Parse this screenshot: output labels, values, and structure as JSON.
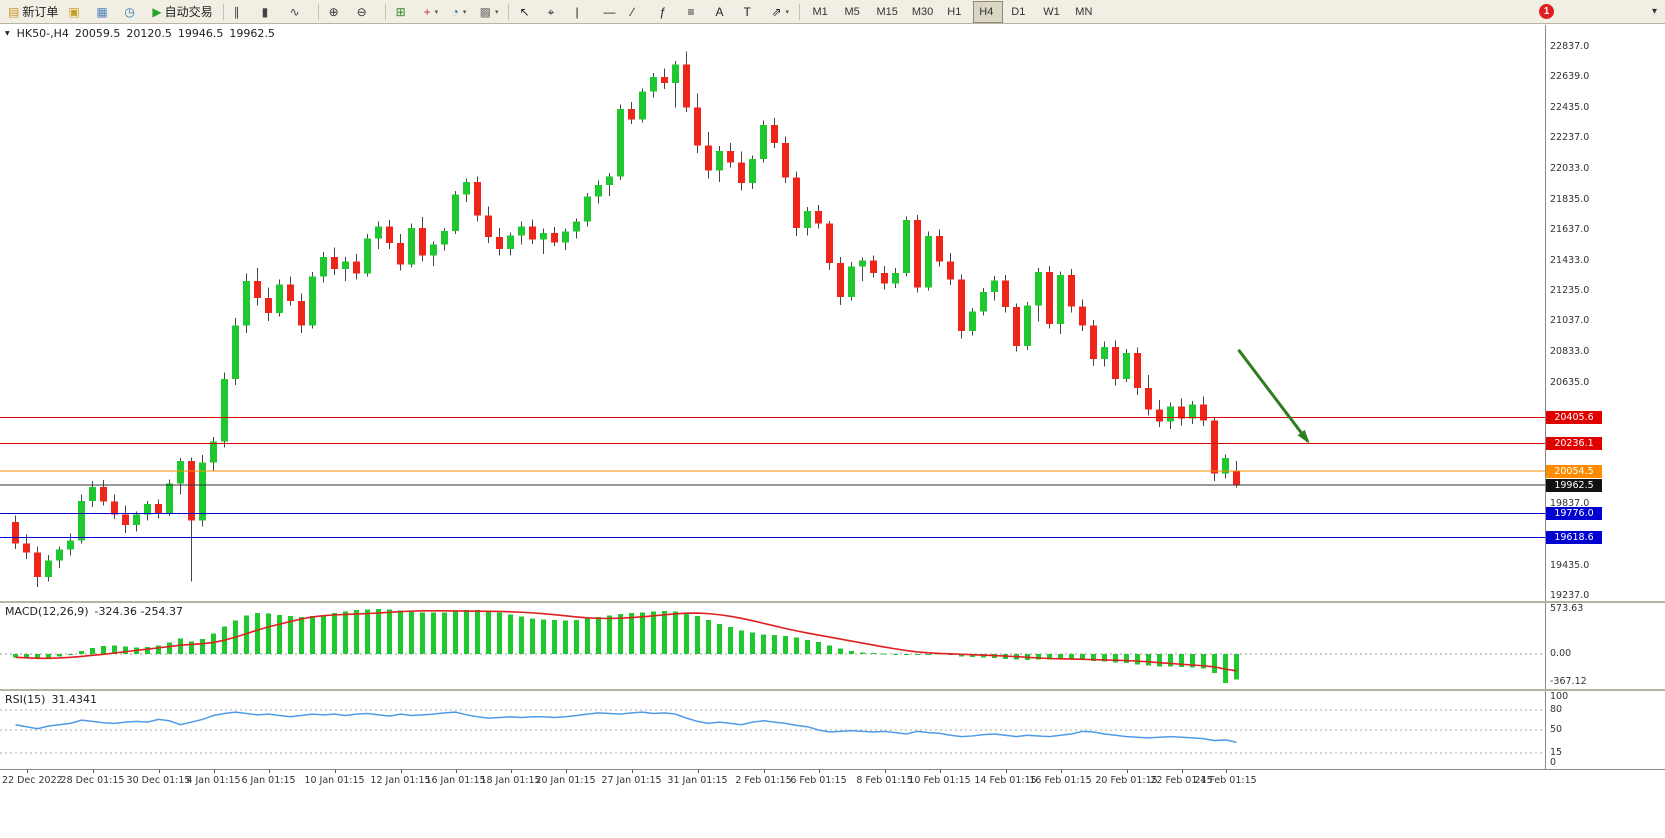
{
  "toolbar": {
    "groups": [
      [
        {
          "name": "new-order",
          "glyph": "▤",
          "label": "新订单",
          "color": "#c89628"
        },
        {
          "name": "charts",
          "glyph": "▣",
          "color": "#c8a028"
        },
        {
          "name": "profiles",
          "glyph": "▦",
          "color": "#4f81bd"
        },
        {
          "name": "market-watch",
          "glyph": "◷",
          "color": "#2e75b6"
        },
        {
          "name": "autotrading",
          "glyph": "▶",
          "label": "自动交易",
          "color": "#28a428"
        }
      ],
      [
        {
          "name": "bar-chart",
          "glyph": "∥",
          "color": "#444444"
        },
        {
          "name": "candlestick-chart",
          "glyph": "▮",
          "color": "#444444"
        },
        {
          "name": "line-chart",
          "glyph": "∿",
          "color": "#444444"
        }
      ],
      [
        {
          "name": "zoom-in",
          "glyph": "⊕",
          "color": "#333333"
        },
        {
          "name": "zoom-out",
          "glyph": "⊖",
          "color": "#333333"
        }
      ],
      [
        {
          "name": "tile-windows",
          "glyph": "⊞",
          "color": "#2e8b2e"
        },
        {
          "name": "indicators",
          "glyph": "+",
          "color": "#cc3333",
          "dropdown": true
        },
        {
          "name": "periods",
          "glyph": "◔",
          "color": "#2e75b6",
          "dropdown": true
        },
        {
          "name": "templates",
          "glyph": "▩",
          "color": "#777777",
          "dropdown": true
        }
      ],
      [
        {
          "name": "cursor",
          "glyph": "↖",
          "color": "#222222"
        },
        {
          "name": "crosshair",
          "glyph": "⌖",
          "color": "#222222"
        },
        {
          "name": "vertical-line",
          "glyph": "|",
          "color": "#222222"
        },
        {
          "name": "horizontal-line",
          "glyph": "—",
          "color": "#222222"
        },
        {
          "name": "trendline",
          "glyph": "∕",
          "color": "#222222"
        },
        {
          "name": "fibonacci",
          "glyph": "ƒ",
          "color": "#222222"
        },
        {
          "name": "channel",
          "glyph": "≡",
          "color": "#222222"
        },
        {
          "name": "text",
          "glyph": "A",
          "color": "#222222"
        },
        {
          "name": "text-label",
          "glyph": "T",
          "color": "#222222"
        },
        {
          "name": "arrows",
          "glyph": "⇗",
          "color": "#222222",
          "dropdown": true
        }
      ]
    ],
    "timeframes": [
      "M1",
      "M5",
      "M15",
      "M30",
      "H1",
      "H4",
      "D1",
      "W1",
      "MN"
    ],
    "active_timeframe": "H4",
    "badge_count": "1",
    "overflow_glyph": "▾"
  },
  "chart": {
    "collapse_glyph": "▼",
    "symbol_period": "HK50-,H4",
    "open": "20059.5",
    "high": "20120.5",
    "low": "19946.5",
    "close": "19962.5"
  },
  "chart_data": [
    {
      "type": "candlestick",
      "symbol": "HK50-",
      "timeframe": "H4",
      "ylim": [
        19203,
        22980
      ],
      "grid": false,
      "colors": {
        "up": "#1ec82e",
        "down": "#f0251a",
        "wick": "#444444"
      },
      "price_axis_labels": [
        22837,
        22639,
        22435,
        22237,
        22033,
        21835,
        21637,
        21433,
        21235,
        21037,
        20833,
        20635,
        19837,
        19435,
        19237
      ],
      "hlines": [
        {
          "label": "20405.6",
          "price": 20405.6,
          "line_color": "#e00000",
          "tag_color": "#e00000"
        },
        {
          "label": "20236.1",
          "price": 20236.1,
          "line_color": "#e00000",
          "tag_color": "#e00000"
        },
        {
          "label": "20054.5",
          "price": 20054.5,
          "line_color": "#ff8c00",
          "tag_color": "#ff8c00"
        },
        {
          "label": "19962.5",
          "price": 19962.5,
          "line_color": "#333333",
          "tag_color": "#111111"
        },
        {
          "label": "19776.0",
          "price": 19776.0,
          "line_color": "#0000d0",
          "tag_color": "#0000d0"
        },
        {
          "label": "19618.6",
          "price": 19618.6,
          "line_color": "#0000d0",
          "tag_color": "#0000d0"
        }
      ],
      "arrow": {
        "from_index": 111.5,
        "from_price": 20850,
        "to_index": 117.8,
        "to_price": 20250,
        "color": "#2e7d1e"
      },
      "ohlc": [
        [
          19720,
          19765,
          19545,
          19580
        ],
        [
          19580,
          19640,
          19480,
          19520
        ],
        [
          19520,
          19560,
          19295,
          19360
        ],
        [
          19360,
          19505,
          19330,
          19470
        ],
        [
          19470,
          19560,
          19420,
          19540
        ],
        [
          19540,
          19645,
          19500,
          19600
        ],
        [
          19600,
          19900,
          19580,
          19860
        ],
        [
          19860,
          19990,
          19820,
          19950
        ],
        [
          19950,
          19995,
          19830,
          19855
        ],
        [
          19855,
          19900,
          19740,
          19770
        ],
        [
          19770,
          19830,
          19650,
          19700
        ],
        [
          19700,
          19790,
          19660,
          19770
        ],
        [
          19770,
          19860,
          19730,
          19840
        ],
        [
          19840,
          19870,
          19745,
          19780
        ],
        [
          19780,
          20000,
          19760,
          19975
        ],
        [
          19975,
          20140,
          19900,
          20120
        ],
        [
          20120,
          20145,
          19330,
          19730
        ],
        [
          19730,
          20160,
          19690,
          20110
        ],
        [
          20110,
          20280,
          20060,
          20250
        ],
        [
          20250,
          20700,
          20210,
          20660
        ],
        [
          20660,
          21060,
          20620,
          21010
        ],
        [
          21010,
          21350,
          20960,
          21300
        ],
        [
          21300,
          21385,
          21140,
          21190
        ],
        [
          21190,
          21260,
          21040,
          21090
        ],
        [
          21090,
          21310,
          21070,
          21280
        ],
        [
          21280,
          21330,
          21140,
          21170
        ],
        [
          21170,
          21220,
          20960,
          21010
        ],
        [
          21010,
          21360,
          20990,
          21330
        ],
        [
          21330,
          21490,
          21290,
          21460
        ],
        [
          21460,
          21520,
          21340,
          21380
        ],
        [
          21380,
          21460,
          21300,
          21430
        ],
        [
          21430,
          21480,
          21310,
          21350
        ],
        [
          21350,
          21610,
          21330,
          21580
        ],
        [
          21580,
          21690,
          21510,
          21660
        ],
        [
          21660,
          21700,
          21510,
          21550
        ],
        [
          21550,
          21610,
          21370,
          21410
        ],
        [
          21410,
          21680,
          21390,
          21650
        ],
        [
          21650,
          21720,
          21430,
          21470
        ],
        [
          21470,
          21560,
          21400,
          21540
        ],
        [
          21540,
          21650,
          21500,
          21630
        ],
        [
          21630,
          21890,
          21610,
          21870
        ],
        [
          21870,
          21975,
          21820,
          21950
        ],
        [
          21950,
          21985,
          21690,
          21730
        ],
        [
          21730,
          21790,
          21550,
          21590
        ],
        [
          21590,
          21650,
          21470,
          21510
        ],
        [
          21510,
          21620,
          21470,
          21600
        ],
        [
          21600,
          21690,
          21540,
          21660
        ],
        [
          21660,
          21705,
          21545,
          21575
        ],
        [
          21575,
          21645,
          21480,
          21615
        ],
        [
          21615,
          21655,
          21530,
          21555
        ],
        [
          21555,
          21645,
          21505,
          21625
        ],
        [
          21625,
          21710,
          21580,
          21690
        ],
        [
          21690,
          21880,
          21660,
          21855
        ],
        [
          21855,
          21960,
          21810,
          21930
        ],
        [
          21930,
          22010,
          21860,
          21985
        ],
        [
          21985,
          22460,
          21965,
          22430
        ],
        [
          22430,
          22475,
          22330,
          22360
        ],
        [
          22360,
          22565,
          22340,
          22545
        ],
        [
          22545,
          22665,
          22505,
          22640
        ],
        [
          22640,
          22695,
          22560,
          22600
        ],
        [
          22600,
          22745,
          22440,
          22720
        ],
        [
          22720,
          22805,
          22410,
          22440
        ],
        [
          22440,
          22530,
          22140,
          22190
        ],
        [
          22190,
          22280,
          21975,
          22025
        ],
        [
          22025,
          22185,
          21950,
          22155
        ],
        [
          22155,
          22205,
          22045,
          22080
        ],
        [
          22080,
          22150,
          21895,
          21945
        ],
        [
          21945,
          22125,
          21905,
          22100
        ],
        [
          22100,
          22355,
          22080,
          22325
        ],
        [
          22325,
          22370,
          22175,
          22205
        ],
        [
          22205,
          22250,
          21945,
          21980
        ],
        [
          21980,
          22020,
          21595,
          21650
        ],
        [
          21650,
          21785,
          21600,
          21760
        ],
        [
          21760,
          21800,
          21645,
          21680
        ],
        [
          21680,
          21695,
          21375,
          21420
        ],
        [
          21420,
          21460,
          21145,
          21195
        ],
        [
          21195,
          21425,
          21175,
          21395
        ],
        [
          21395,
          21455,
          21300,
          21435
        ],
        [
          21435,
          21470,
          21325,
          21355
        ],
        [
          21355,
          21400,
          21245,
          21285
        ],
        [
          21285,
          21385,
          21255,
          21355
        ],
        [
          21355,
          21725,
          21330,
          21700
        ],
        [
          21700,
          21735,
          21225,
          21260
        ],
        [
          21260,
          21625,
          21240,
          21595
        ],
        [
          21595,
          21640,
          21395,
          21430
        ],
        [
          21430,
          21485,
          21275,
          21310
        ],
        [
          21310,
          21345,
          20925,
          20975
        ],
        [
          20975,
          21125,
          20945,
          21100
        ],
        [
          21100,
          21255,
          21075,
          21230
        ],
        [
          21230,
          21335,
          21175,
          21305
        ],
        [
          21305,
          21340,
          21095,
          21130
        ],
        [
          21130,
          21155,
          20840,
          20875
        ],
        [
          20875,
          21165,
          20850,
          21140
        ],
        [
          21140,
          21385,
          21035,
          21360
        ],
        [
          21360,
          21400,
          20990,
          21020
        ],
        [
          21020,
          21365,
          20955,
          21340
        ],
        [
          21340,
          21380,
          21095,
          21135
        ],
        [
          21135,
          21180,
          20975,
          21010
        ],
        [
          21010,
          21045,
          20745,
          20790
        ],
        [
          20790,
          20905,
          20740,
          20870
        ],
        [
          20870,
          20910,
          20615,
          20660
        ],
        [
          20660,
          20855,
          20640,
          20830
        ],
        [
          20830,
          20865,
          20555,
          20600
        ],
        [
          20600,
          20685,
          20420,
          20460
        ],
        [
          20460,
          20520,
          20345,
          20380
        ],
        [
          20380,
          20505,
          20330,
          20480
        ],
        [
          20480,
          20530,
          20355,
          20400
        ],
        [
          20400,
          20515,
          20365,
          20490
        ],
        [
          20490,
          20545,
          20350,
          20385
        ],
        [
          20385,
          20405,
          19990,
          20040
        ],
        [
          20040,
          20165,
          20005,
          20140
        ],
        [
          20059.5,
          20120.5,
          19946.5,
          19962.5
        ]
      ],
      "x_labels": [
        {
          "i": 1,
          "t": "22 Dec 2022"
        },
        {
          "i": 7,
          "t": "28 Dec 01:15"
        },
        {
          "i": 13,
          "t": "30 Dec 01:15"
        },
        {
          "i": 18,
          "t": "4 Jan 01:15"
        },
        {
          "i": 23,
          "t": "6 Jan 01:15"
        },
        {
          "i": 29,
          "t": "10 Jan 01:15"
        },
        {
          "i": 35,
          "t": "12 Jan 01:15"
        },
        {
          "i": 40,
          "t": "16 Jan 01:15"
        },
        {
          "i": 45,
          "t": "18 Jan 01:15"
        },
        {
          "i": 50,
          "t": "20 Jan 01:15"
        },
        {
          "i": 56,
          "t": "27 Jan 01:15"
        },
        {
          "i": 62,
          "t": "31 Jan 01:15"
        },
        {
          "i": 68,
          "t": "2 Feb 01:15"
        },
        {
          "i": 73,
          "t": "6 Feb 01:15"
        },
        {
          "i": 79,
          "t": "8 Feb 01:15"
        },
        {
          "i": 84,
          "t": "10 Feb 01:15"
        },
        {
          "i": 90,
          "t": "14 Feb 01:15"
        },
        {
          "i": 95,
          "t": "16 Feb 01:15"
        },
        {
          "i": 101,
          "t": "20 Feb 01:15"
        },
        {
          "i": 106,
          "t": "22 Feb 01:15"
        },
        {
          "i": 110,
          "t": "24 Feb 01:15"
        }
      ]
    },
    {
      "type": "bar",
      "header": "MACD(12,26,9)",
      "values_text": "-324.36 -254.37",
      "value_main": -324.36,
      "value_signal": -254.37,
      "ylim": [
        -367.12,
        573.63
      ],
      "axis_labels": [
        573.63,
        0.0,
        -367.12
      ],
      "signal_period": 9,
      "colors": {
        "bar": "#1ec82e",
        "signal": "#e02020"
      },
      "values": [
        -40,
        -55,
        -65,
        -55,
        -30,
        0,
        40,
        80,
        105,
        110,
        95,
        85,
        90,
        110,
        150,
        200,
        160,
        190,
        260,
        350,
        430,
        490,
        520,
        515,
        500,
        485,
        475,
        485,
        500,
        520,
        540,
        558,
        570,
        573.63,
        565,
        552,
        542,
        532,
        527,
        532,
        546,
        558,
        561,
        552,
        532,
        505,
        478,
        455,
        442,
        432,
        427,
        432,
        450,
        470,
        492,
        512,
        523,
        532,
        542,
        547,
        543,
        522,
        482,
        432,
        382,
        342,
        302,
        272,
        250,
        240,
        230,
        210,
        182,
        152,
        112,
        72,
        42,
        22,
        12,
        6,
        1,
        -8,
        -4,
        2,
        10,
        -8,
        -28,
        -38,
        -44,
        -50,
        -60,
        -70,
        -75,
        -70,
        -66,
        -60,
        -66,
        -76,
        -86,
        -96,
        -106,
        -116,
        -130,
        -145,
        -155,
        -160,
        -166,
        -172,
        -182,
        -240,
        -367.12,
        -324.36
      ]
    },
    {
      "type": "line",
      "header": "RSI(15)",
      "value_text": "31.4341",
      "value": 31.4341,
      "ylim": [
        0,
        100
      ],
      "levels": [
        80,
        50,
        15
      ],
      "axis_labels": [
        100,
        80,
        50,
        15,
        0
      ],
      "color": "#4f9be8",
      "values": [
        58,
        55,
        52,
        56,
        58,
        60,
        65,
        63,
        61,
        60,
        62,
        63,
        62,
        66,
        64,
        58,
        62,
        66,
        72,
        75,
        77,
        75,
        73,
        74,
        72,
        70,
        72,
        74,
        73,
        74,
        72,
        74,
        75,
        73,
        71,
        74,
        72,
        73,
        74,
        76,
        77,
        73,
        70,
        68,
        69,
        70,
        69,
        70,
        70,
        69,
        70,
        72,
        74,
        76,
        75,
        74,
        76,
        77,
        75,
        76,
        74,
        68,
        63,
        60,
        62,
        60,
        58,
        62,
        64,
        62,
        60,
        57,
        55,
        50,
        47,
        48,
        49,
        48,
        47,
        48,
        46,
        44,
        48,
        46,
        45,
        42,
        40,
        41,
        43,
        44,
        42,
        40,
        42,
        41,
        40,
        42,
        44,
        48,
        47,
        44,
        42,
        40,
        39,
        38,
        39,
        40,
        39,
        38,
        37,
        34,
        35,
        31.43
      ]
    }
  ]
}
